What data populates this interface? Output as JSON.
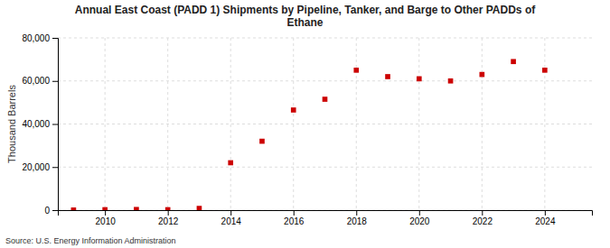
{
  "chart_data": {
    "type": "scatter",
    "title": "Annual East Coast (PADD 1) Shipments by Pipeline, Tanker, and Barge to Other PADDs of\nEthane",
    "ylabel": "Thousand Barrels",
    "source": "Source: U.S. Energy Information Administration",
    "x": [
      2009,
      2010,
      2011,
      2012,
      2013,
      2014,
      2015,
      2016,
      2017,
      2018,
      2019,
      2020,
      2021,
      2022,
      2023,
      2024
    ],
    "values": [
      50,
      200,
      300,
      200,
      800,
      22000,
      32000,
      46500,
      51500,
      65000,
      62000,
      61000,
      60000,
      63000,
      69000,
      65000
    ],
    "color": "#cc0000",
    "marker": "square",
    "xlim": [
      2008.5,
      2025.5
    ],
    "xticks": [
      2010,
      2012,
      2014,
      2016,
      2018,
      2020,
      2022,
      2024
    ],
    "ylim": [
      0,
      80000
    ],
    "yticks": [
      0,
      {
        "value": 20000,
        "label": "20,000"
      },
      {
        "value": 40000,
        "label": "40,000"
      },
      {
        "value": 60000,
        "label": "60,000"
      },
      {
        "value": 80000,
        "label": "80,000"
      }
    ],
    "grid": true
  }
}
